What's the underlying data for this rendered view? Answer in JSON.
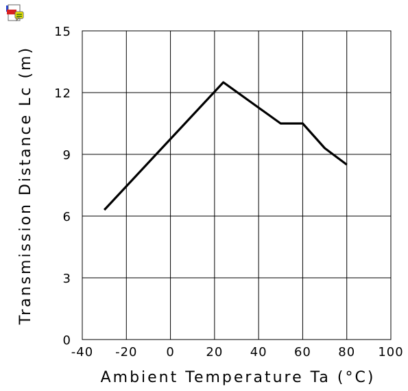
{
  "chart_data": {
    "type": "line",
    "title": "",
    "xlabel": "Ambient Temperature Ta (°C)",
    "ylabel": "Transmission Distance Lc (m)",
    "xlim": [
      -40,
      100
    ],
    "ylim": [
      0,
      15
    ],
    "xticks": [
      "-40",
      "-20",
      "0",
      "20",
      "40",
      "60",
      "80",
      "100"
    ],
    "yticks": [
      "0",
      "3",
      "6",
      "9",
      "12",
      "15"
    ],
    "grid": true,
    "series": [
      {
        "name": "",
        "x": [
          -30,
          24,
          50,
          60,
          70,
          80
        ],
        "y": [
          6.3,
          12.5,
          10.5,
          10.5,
          9.3,
          8.5
        ]
      }
    ]
  },
  "icons": {
    "corner_badge": "document-comment-icon"
  },
  "colors": {
    "line": "#000000",
    "grid": "#000000",
    "background": "#ffffff"
  }
}
